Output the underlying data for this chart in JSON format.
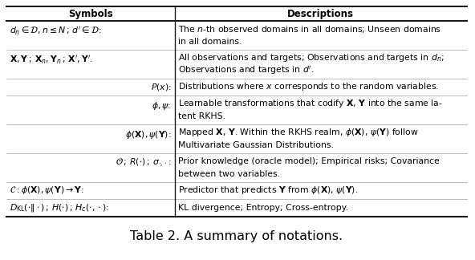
{
  "title": "Table 2. A summary of notations.",
  "col_split": 0.365,
  "header_sym": "Symbols",
  "header_desc": "Descriptions",
  "rows": [
    {
      "symbol": "$d_n \\in \\mathcal{D}, n \\leq N\\,;\\,d^{\\prime} \\in \\mathcal{D}$:",
      "desc_line1": "The $n$-th observed domains in all domains; Unseen domains",
      "desc_line2": "in all domains.",
      "sym_align": "left",
      "two_lines": true
    },
    {
      "symbol": "$\\mathbf{X}, \\mathbf{Y}\\,;\\,\\mathbf{X}_n, \\mathbf{Y}_n\\,;\\,\\mathbf{X}^{\\prime}, \\mathbf{Y}^{\\prime}$.",
      "desc_line1": "All observations and targets; Observations and targets in $d_n$;",
      "desc_line2": "Observations and targets in $d^{\\prime}$.",
      "sym_align": "left",
      "two_lines": true
    },
    {
      "symbol": "$P(x)$:",
      "desc_line1": "Distributions where $x$ corresponds to the random variables.",
      "desc_line2": "",
      "sym_align": "right",
      "two_lines": false
    },
    {
      "symbol": "$\\phi, \\psi$:",
      "desc_line1": "Learnable transformations that codify $\\mathbf{X}$, $\\mathbf{Y}$ into the same la-",
      "desc_line2": "tent RKHS.",
      "sym_align": "right",
      "two_lines": true
    },
    {
      "symbol": "$\\phi(\\mathbf{X}), \\psi(\\mathbf{Y})$:",
      "desc_line1": "Mapped $\\mathbf{X}$, $\\mathbf{Y}$. Within the RKHS realm, $\\phi(\\mathbf{X})$, $\\psi(\\mathbf{Y})$ follow",
      "desc_line2": "Multivariate Gaussian Distributions.",
      "sym_align": "right",
      "two_lines": true
    },
    {
      "symbol": "$\\mathcal{O}\\,;\\,R(\\cdot)\\,;\\,\\sigma_{\\cdot,\\cdot}$:",
      "desc_line1": "Prior knowledge (oracle model); Empirical risks; Covariance",
      "desc_line2": "between two variables.",
      "sym_align": "right",
      "two_lines": true
    },
    {
      "symbol": "$\\mathcal{C}: \\phi(\\mathbf{X}), \\psi(\\mathbf{Y}) \\rightarrow \\mathbf{Y}$:",
      "desc_line1": "Predictor that predicts $\\mathbf{Y}$ from $\\phi(\\mathbf{X})$, $\\psi(\\mathbf{Y})$.",
      "desc_line2": "",
      "sym_align": "left",
      "two_lines": false
    },
    {
      "symbol": "$D_{\\mathrm{KL}}(\\cdot\\|\\cdot)\\,;\\,H(\\cdot)\\,;\\,H_c(\\cdot,\\cdot)$:",
      "desc_line1": "KL divergence; Entropy; Cross-entropy.",
      "desc_line2": "",
      "sym_align": "left",
      "two_lines": false
    }
  ],
  "bg_color": "#ffffff",
  "line_color": "#1a1a1a",
  "fontsize": 7.8,
  "header_fontsize": 8.5,
  "title_fontsize": 11.5
}
